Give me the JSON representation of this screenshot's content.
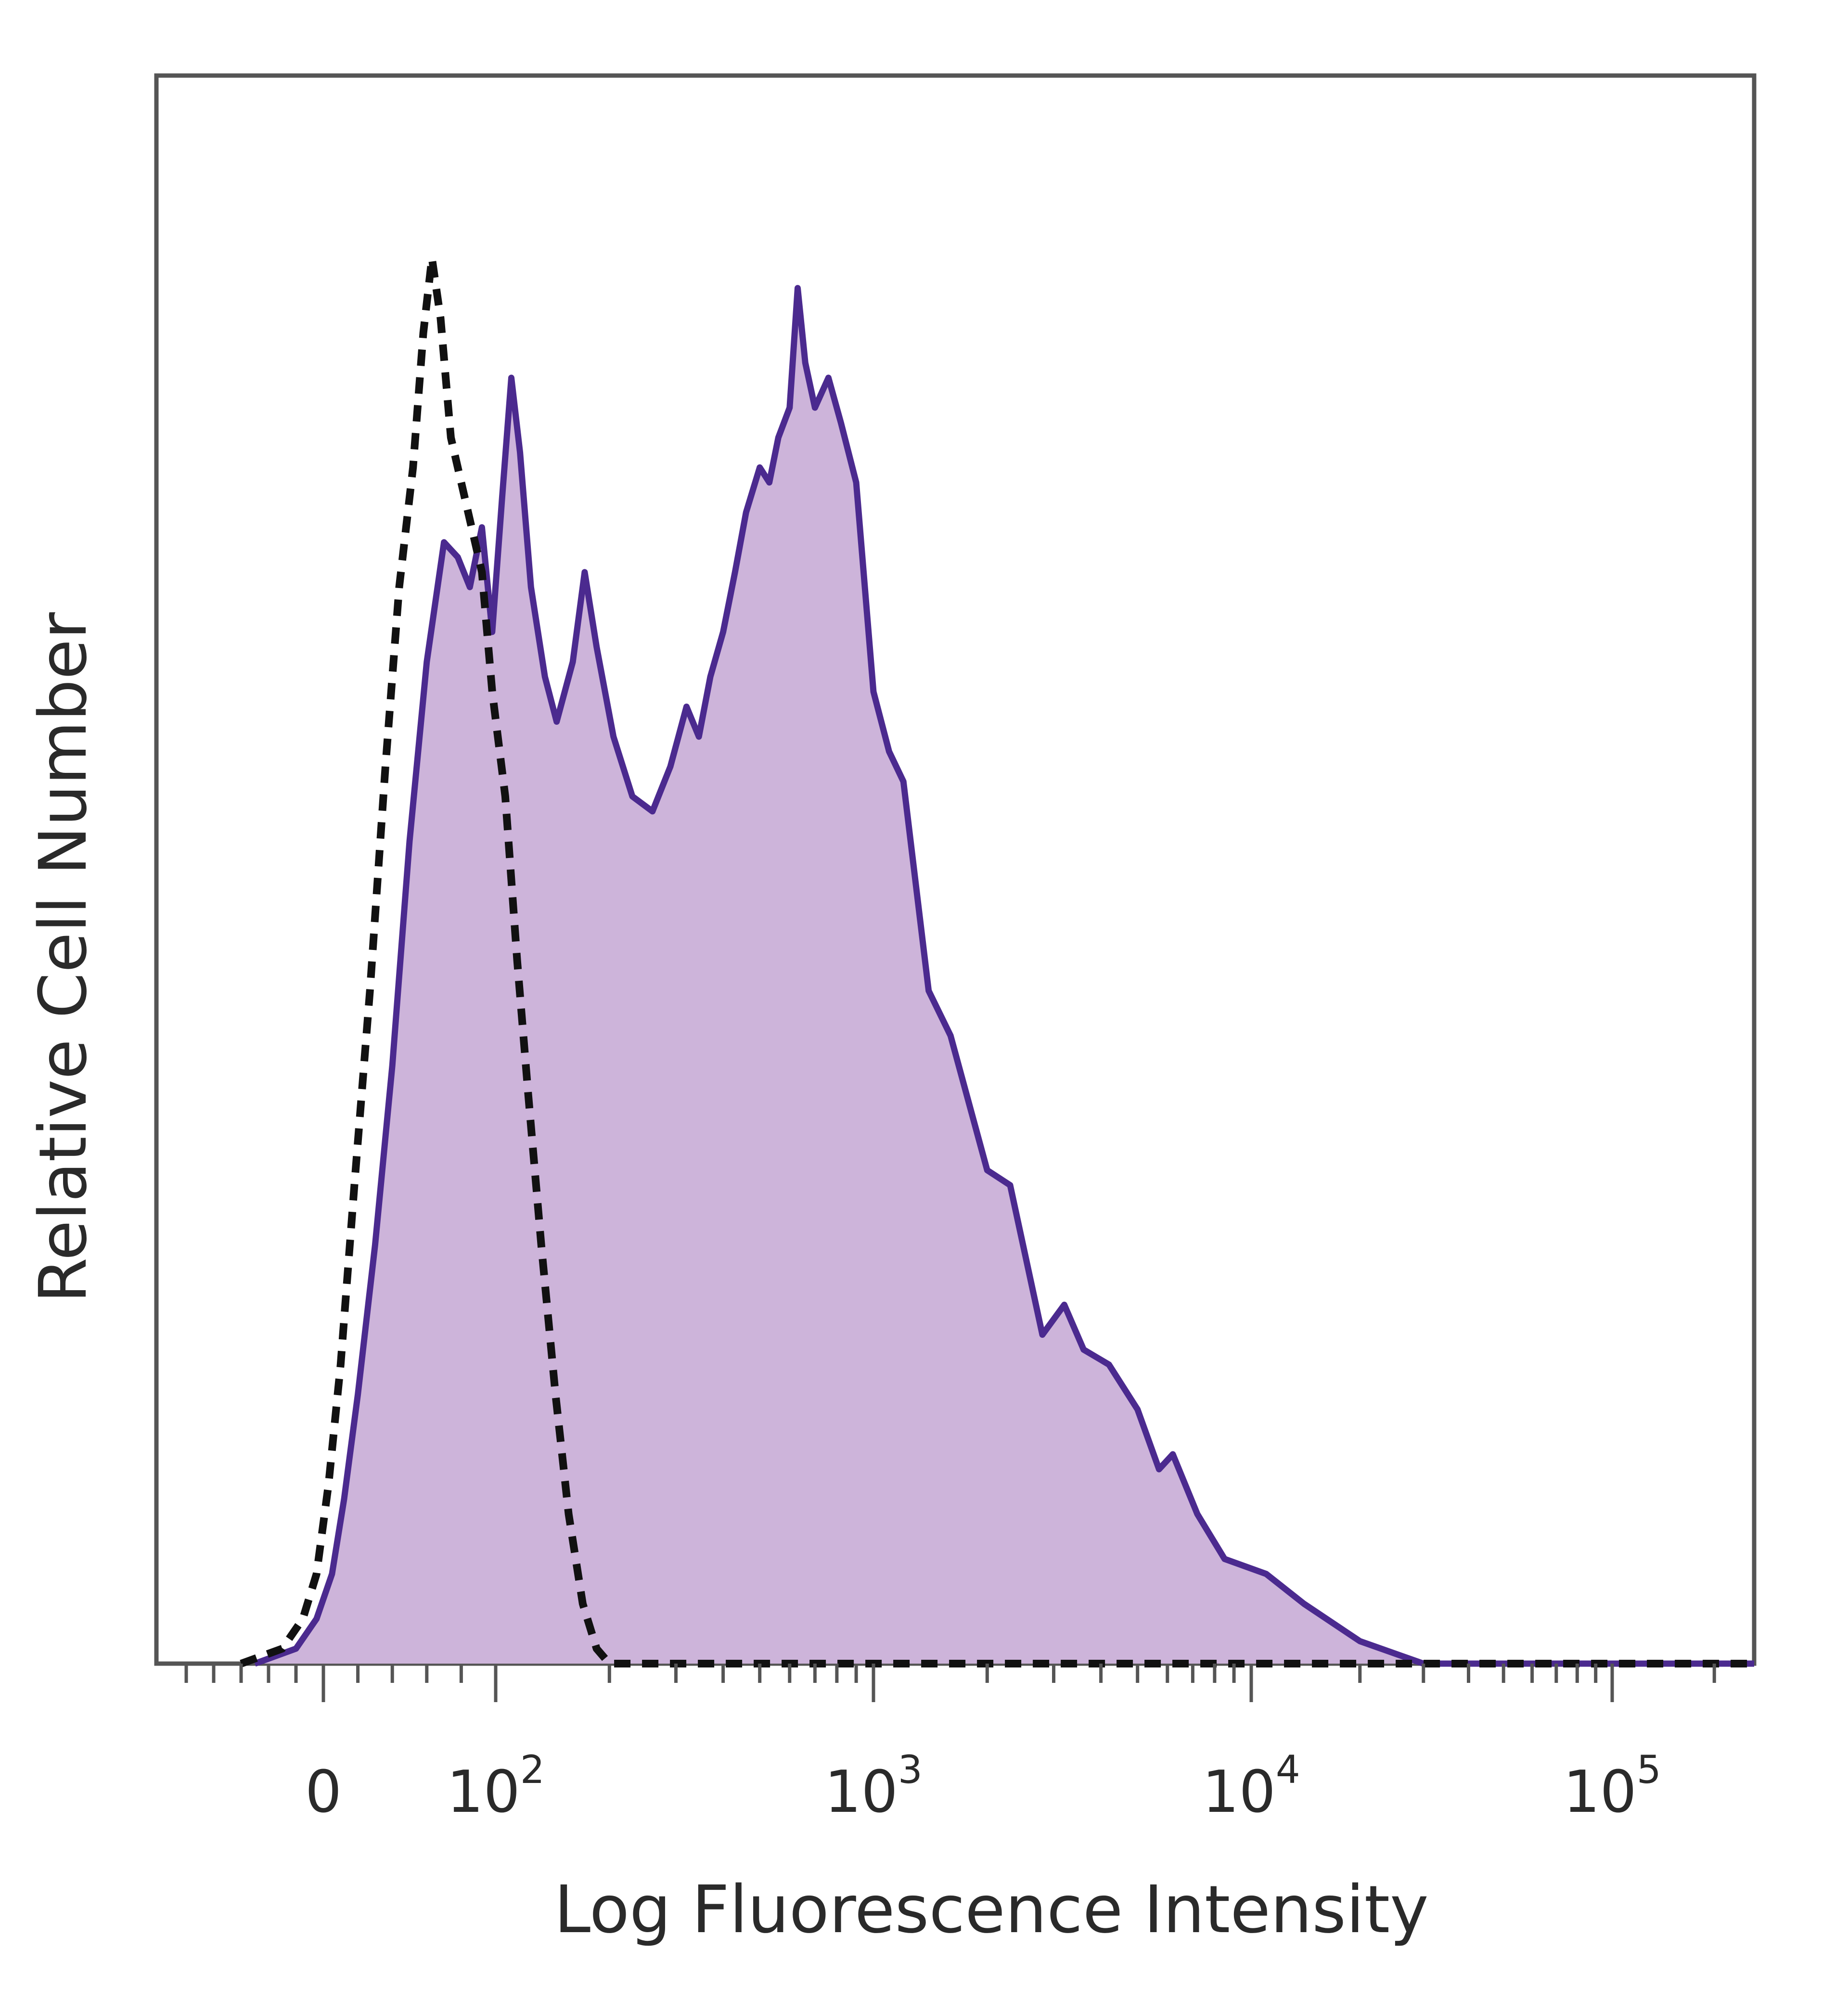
{
  "chart_data": {
    "type": "area",
    "xlabel": "Log Fluorescence Intensity",
    "ylabel": "Relative Cell Number",
    "x_scale": "biexponential",
    "x_ticks": [
      {
        "value": 0,
        "base": "0",
        "exp": ""
      },
      {
        "value": 100,
        "base": "10",
        "exp": "2"
      },
      {
        "value": 1000,
        "base": "10",
        "exp": "3"
      },
      {
        "value": 10000,
        "base": "10",
        "exp": "4"
      },
      {
        "value": 100000,
        "base": "10",
        "exp": "5"
      }
    ],
    "xlim": [
      -120,
      262144
    ],
    "ylim": [
      0,
      100
    ],
    "grid": false,
    "series": [
      {
        "style": "filled-solid",
        "line_color": "#4b2a8f",
        "fill_color": "#cdb4da",
        "points": [
          [
            -50,
            0
          ],
          [
            -20,
            1
          ],
          [
            -5,
            3
          ],
          [
            5,
            6
          ],
          [
            12,
            11
          ],
          [
            20,
            18
          ],
          [
            30,
            28
          ],
          [
            40,
            40
          ],
          [
            50,
            55
          ],
          [
            60,
            67
          ],
          [
            70,
            75
          ],
          [
            78,
            74
          ],
          [
            85,
            72
          ],
          [
            92,
            76
          ],
          [
            98,
            69
          ],
          [
            104,
            78
          ],
          [
            110,
            86
          ],
          [
            116,
            81
          ],
          [
            124,
            72
          ],
          [
            135,
            66
          ],
          [
            145,
            63
          ],
          [
            160,
            67
          ],
          [
            172,
            73
          ],
          [
            185,
            68
          ],
          [
            205,
            62
          ],
          [
            230,
            58
          ],
          [
            260,
            57
          ],
          [
            290,
            60
          ],
          [
            320,
            64
          ],
          [
            345,
            62
          ],
          [
            370,
            66
          ],
          [
            400,
            69
          ],
          [
            430,
            73
          ],
          [
            460,
            77
          ],
          [
            500,
            80
          ],
          [
            530,
            79
          ],
          [
            560,
            82
          ],
          [
            600,
            84
          ],
          [
            630,
            92
          ],
          [
            660,
            87
          ],
          [
            700,
            84
          ],
          [
            760,
            86
          ],
          [
            820,
            83
          ],
          [
            900,
            79
          ],
          [
            1000,
            65
          ],
          [
            1100,
            61
          ],
          [
            1200,
            59
          ],
          [
            1400,
            45
          ],
          [
            1600,
            42
          ],
          [
            2000,
            33
          ],
          [
            2300,
            32
          ],
          [
            2800,
            22
          ],
          [
            3200,
            24
          ],
          [
            3600,
            21
          ],
          [
            4200,
            20
          ],
          [
            5000,
            17
          ],
          [
            5700,
            13
          ],
          [
            6200,
            14
          ],
          [
            7200,
            10
          ],
          [
            8500,
            7
          ],
          [
            11000,
            6
          ],
          [
            14000,
            4
          ],
          [
            20000,
            1.5
          ],
          [
            30000,
            0
          ],
          [
            262144,
            0
          ]
        ]
      },
      {
        "style": "dashed",
        "line_color": "#111111",
        "points": [
          [
            -60,
            0
          ],
          [
            -30,
            1
          ],
          [
            -15,
            3
          ],
          [
            -5,
            6
          ],
          [
            3,
            12
          ],
          [
            10,
            20
          ],
          [
            18,
            32
          ],
          [
            27,
            45
          ],
          [
            36,
            60
          ],
          [
            44,
            72
          ],
          [
            52,
            80
          ],
          [
            58,
            89
          ],
          [
            63,
            94
          ],
          [
            68,
            90
          ],
          [
            74,
            82
          ],
          [
            80,
            79
          ],
          [
            86,
            76
          ],
          [
            92,
            73
          ],
          [
            98,
            65
          ],
          [
            106,
            58
          ],
          [
            114,
            47
          ],
          [
            122,
            38
          ],
          [
            132,
            28
          ],
          [
            144,
            18
          ],
          [
            156,
            10
          ],
          [
            170,
            4
          ],
          [
            185,
            1
          ],
          [
            200,
            0
          ],
          [
            262144,
            0
          ]
        ]
      }
    ]
  }
}
